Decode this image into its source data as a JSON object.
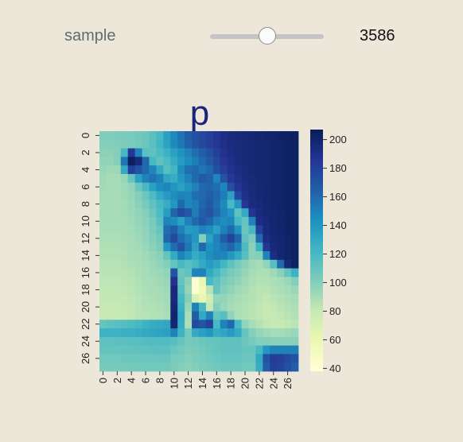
{
  "widget": {
    "label": "sample",
    "value": "3586",
    "level": 0.5
  },
  "chart_data": {
    "type": "heatmap",
    "title": "p",
    "rows": 28,
    "cols": 28,
    "x_tick_labels": [
      "0",
      "2",
      "4",
      "6",
      "8",
      "10",
      "12",
      "14",
      "16",
      "18",
      "20",
      "22",
      "24",
      "26"
    ],
    "y_tick_labels": [
      "0",
      "2",
      "4",
      "6",
      "8",
      "10",
      "12",
      "14",
      "16",
      "18",
      "20",
      "22",
      "24",
      "26"
    ],
    "colorbar": {
      "cmap": "YlGnBu",
      "min": 38,
      "max": 207,
      "tick_labels": [
        "40",
        "60",
        "80",
        "100",
        "120",
        "140",
        "160",
        "180",
        "200"
      ]
    },
    "values": [
      [
        101,
        101,
        102,
        103,
        104,
        106,
        108,
        113,
        120,
        135,
        147,
        156,
        166,
        172,
        176,
        181,
        186,
        191,
        194,
        196,
        197,
        198,
        199,
        200,
        201,
        202,
        203,
        204
      ],
      [
        100,
        100,
        101,
        102,
        103,
        105,
        108,
        114,
        122,
        134,
        146,
        154,
        163,
        170,
        175,
        180,
        185,
        190,
        193,
        195,
        196,
        197,
        198,
        199,
        200,
        201,
        202,
        203
      ],
      [
        98,
        98,
        100,
        120,
        185,
        150,
        113,
        112,
        118,
        125,
        135,
        142,
        150,
        158,
        165,
        172,
        180,
        188,
        192,
        195,
        196,
        197,
        198,
        199,
        200,
        201,
        202,
        203
      ],
      [
        96,
        96,
        100,
        155,
        205,
        195,
        160,
        120,
        112,
        118,
        128,
        138,
        145,
        152,
        160,
        168,
        176,
        185,
        190,
        194,
        196,
        197,
        198,
        199,
        200,
        201,
        202,
        203
      ],
      [
        94,
        92,
        93,
        130,
        180,
        170,
        160,
        148,
        130,
        115,
        122,
        145,
        158,
        160,
        155,
        160,
        172,
        180,
        188,
        192,
        195,
        197,
        198,
        199,
        200,
        201,
        202,
        203
      ],
      [
        92,
        90,
        90,
        95,
        110,
        135,
        150,
        156,
        150,
        132,
        128,
        140,
        150,
        160,
        168,
        164,
        148,
        170,
        184,
        190,
        194,
        196,
        198,
        199,
        200,
        201,
        202,
        203
      ],
      [
        91,
        90,
        90,
        92,
        96,
        108,
        120,
        135,
        145,
        148,
        140,
        135,
        142,
        150,
        160,
        162,
        158,
        148,
        172,
        186,
        192,
        195,
        197,
        199,
        200,
        201,
        202,
        203
      ],
      [
        90,
        90,
        90,
        92,
        95,
        100,
        108,
        118,
        130,
        138,
        145,
        150,
        148,
        158,
        160,
        165,
        160,
        152,
        135,
        176,
        190,
        194,
        197,
        199,
        200,
        201,
        202,
        203
      ],
      [
        90,
        90,
        90,
        91,
        94,
        98,
        104,
        112,
        120,
        128,
        140,
        160,
        148,
        152,
        162,
        168,
        158,
        146,
        120,
        140,
        185,
        193,
        196,
        198,
        200,
        201,
        202,
        203
      ],
      [
        90,
        90,
        90,
        91,
        93,
        96,
        100,
        108,
        118,
        136,
        162,
        175,
        168,
        152,
        165,
        170,
        160,
        150,
        140,
        112,
        130,
        186,
        194,
        197,
        199,
        200,
        202,
        203
      ],
      [
        90,
        90,
        90,
        90,
        92,
        95,
        98,
        104,
        115,
        150,
        145,
        135,
        150,
        160,
        168,
        162,
        150,
        145,
        148,
        120,
        110,
        150,
        192,
        196,
        199,
        200,
        202,
        203
      ],
      [
        89,
        89,
        89,
        90,
        91,
        94,
        97,
        102,
        110,
        158,
        165,
        150,
        138,
        140,
        150,
        145,
        135,
        150,
        160,
        142,
        108,
        120,
        180,
        195,
        198,
        200,
        202,
        203
      ],
      [
        88,
        88,
        88,
        89,
        90,
        92,
        96,
        100,
        105,
        162,
        175,
        158,
        150,
        140,
        100,
        135,
        150,
        165,
        178,
        162,
        112,
        102,
        160,
        192,
        197,
        199,
        201,
        203
      ],
      [
        87,
        87,
        87,
        88,
        90,
        91,
        94,
        98,
        102,
        140,
        158,
        170,
        155,
        135,
        160,
        142,
        148,
        155,
        162,
        150,
        118,
        98,
        125,
        185,
        196,
        199,
        201,
        203
      ],
      [
        86,
        86,
        86,
        87,
        89,
        90,
        92,
        95,
        98,
        110,
        130,
        150,
        140,
        128,
        135,
        145,
        150,
        148,
        140,
        130,
        115,
        98,
        100,
        150,
        192,
        198,
        201,
        203
      ],
      [
        85,
        85,
        85,
        86,
        88,
        89,
        91,
        93,
        96,
        100,
        110,
        120,
        115,
        120,
        130,
        138,
        132,
        122,
        112,
        104,
        98,
        92,
        90,
        96,
        115,
        160,
        196,
        203
      ],
      [
        84,
        84,
        84,
        85,
        86,
        88,
        90,
        92,
        94,
        96,
        170,
        108,
        112,
        148,
        150,
        130,
        120,
        110,
        104,
        100,
        95,
        90,
        88,
        88,
        92,
        98,
        110,
        125
      ],
      [
        83,
        83,
        83,
        84,
        85,
        87,
        89,
        90,
        92,
        94,
        188,
        110,
        98,
        42,
        60,
        120,
        112,
        104,
        100,
        96,
        92,
        88,
        86,
        86,
        88,
        90,
        94,
        100
      ],
      [
        82,
        82,
        82,
        83,
        84,
        86,
        88,
        89,
        90,
        92,
        195,
        115,
        95,
        42,
        55,
        85,
        110,
        100,
        96,
        92,
        90,
        86,
        84,
        84,
        86,
        88,
        90,
        94
      ],
      [
        81,
        81,
        81,
        82,
        83,
        85,
        87,
        88,
        89,
        91,
        195,
        120,
        100,
        70,
        60,
        75,
        95,
        96,
        92,
        90,
        88,
        86,
        84,
        82,
        84,
        86,
        88,
        90
      ],
      [
        80,
        80,
        80,
        81,
        82,
        84,
        86,
        87,
        88,
        90,
        198,
        125,
        95,
        150,
        120,
        80,
        100,
        94,
        90,
        88,
        86,
        84,
        82,
        80,
        82,
        84,
        86,
        88
      ],
      [
        80,
        80,
        80,
        80,
        82,
        84,
        85,
        86,
        87,
        89,
        200,
        130,
        90,
        165,
        130,
        150,
        110,
        115,
        96,
        88,
        86,
        84,
        82,
        80,
        80,
        82,
        84,
        86
      ],
      [
        110,
        112,
        114,
        116,
        118,
        120,
        124,
        128,
        130,
        132,
        198,
        128,
        88,
        175,
        170,
        178,
        120,
        150,
        160,
        120,
        96,
        90,
        86,
        82,
        80,
        80,
        82,
        84
      ],
      [
        125,
        125,
        125,
        126,
        126,
        128,
        130,
        132,
        134,
        135,
        150,
        125,
        105,
        130,
        135,
        140,
        128,
        132,
        138,
        130,
        110,
        100,
        95,
        92,
        90,
        90,
        92,
        94
      ],
      [
        112,
        112,
        113,
        113,
        114,
        115,
        116,
        116,
        117,
        117,
        115,
        110,
        104,
        106,
        108,
        110,
        110,
        112,
        112,
        112,
        108,
        104,
        100,
        100,
        98,
        98,
        98,
        98
      ],
      [
        110,
        110,
        110,
        111,
        111,
        112,
        112,
        113,
        113,
        113,
        108,
        105,
        102,
        104,
        106,
        108,
        110,
        112,
        112,
        112,
        110,
        110,
        120,
        140,
        150,
        150,
        150,
        150
      ],
      [
        106,
        106,
        106,
        107,
        107,
        108,
        108,
        108,
        109,
        109,
        104,
        102,
        100,
        102,
        104,
        106,
        108,
        110,
        110,
        110,
        108,
        108,
        130,
        170,
        182,
        180,
        175,
        170
      ],
      [
        104,
        104,
        104,
        104,
        105,
        105,
        106,
        106,
        106,
        106,
        102,
        100,
        98,
        100,
        102,
        104,
        106,
        108,
        108,
        108,
        106,
        106,
        128,
        165,
        180,
        178,
        172,
        165
      ]
    ]
  }
}
